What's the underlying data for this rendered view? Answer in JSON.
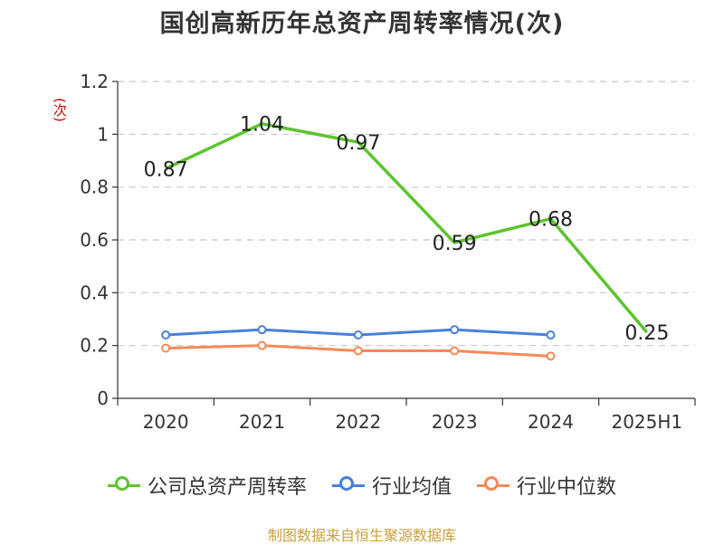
{
  "title": "国创高新历年总资产周转率情况(次)",
  "unit_label": "(次)",
  "source": "制图数据来自恒生聚源数据库",
  "chart_data": {
    "type": "line",
    "title": "国创高新历年总资产周转率情况(次)",
    "ylabel": "(次)",
    "categories": [
      "2020",
      "2021",
      "2022",
      "2023",
      "2024",
      "2025H1"
    ],
    "ylim": [
      0,
      1.2
    ],
    "yticks": [
      "0",
      "0.2",
      "0.4",
      "0.6",
      "0.8",
      "1",
      "1.2"
    ],
    "grid": true,
    "legend_position": "bottom",
    "series": [
      {
        "name": "公司总资产周转率",
        "color": "#5cc42e",
        "values": [
          0.87,
          1.04,
          0.97,
          0.59,
          0.68,
          0.25
        ],
        "labels": [
          "0.87",
          "1.04",
          "0.97",
          "0.59",
          "0.68",
          "0.25"
        ]
      },
      {
        "name": "行业均值",
        "color": "#4a7fdb",
        "values": [
          0.24,
          0.26,
          0.24,
          0.26,
          0.24,
          null
        ]
      },
      {
        "name": "行业中位数",
        "color": "#f5895a",
        "values": [
          0.19,
          0.2,
          0.18,
          0.18,
          0.16,
          null
        ]
      }
    ]
  }
}
